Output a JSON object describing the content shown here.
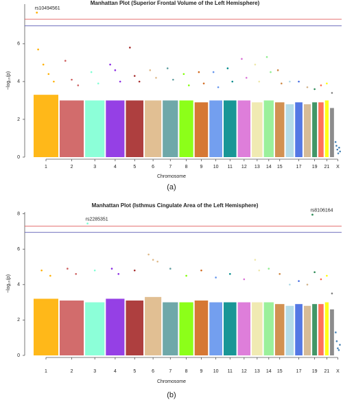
{
  "chart_data": [
    {
      "type": "manhattan",
      "title": "Manhattan Plot (Superior Frontal Volume of the Left Hemisphere)",
      "x_label": "Chromosome",
      "y_label": "−log₁₀(p)",
      "caption": "(a)",
      "categories": [
        "1",
        "2",
        "3",
        "4",
        "5",
        "6",
        "7",
        "8",
        "9",
        "10",
        "11",
        "12",
        "13",
        "14",
        "15",
        null,
        "17",
        null,
        "19",
        null,
        "21",
        null,
        "X"
      ],
      "colors": [
        "#ffb000",
        "#cd5c5c",
        "#7fffd4",
        "#8a2be2",
        "#a52a2a",
        "#deb887",
        "#5f9ea0",
        "#7fff00",
        "#d2691e",
        "#6495ed",
        "#008b8b",
        "#da70d6",
        "#eee8aa",
        "#90ee90",
        "#cd853f",
        "#add8e6",
        "#4169e1",
        "#d2b48c",
        "#2e8b57",
        "#ff6347",
        "#ffff00",
        "#808080",
        "#4682b4"
      ],
      "band_tops": [
        3.3,
        3.0,
        3.0,
        3.0,
        3.0,
        3.0,
        3.0,
        3.0,
        2.9,
        3.0,
        3.0,
        3.0,
        2.9,
        3.0,
        2.9,
        2.8,
        2.9,
        2.8,
        2.9,
        2.9,
        3.0,
        2.6,
        null
      ],
      "peaks": [
        [
          5.7,
          4.9,
          4.4,
          4.0
        ],
        [
          5.1,
          4.1,
          3.8
        ],
        [
          4.5,
          3.9
        ],
        [
          4.9,
          4.6,
          4.0
        ],
        [
          5.8,
          4.3,
          4.0
        ],
        [
          4.6,
          4.2
        ],
        [
          4.7,
          4.1
        ],
        [
          4.4,
          3.8
        ],
        [
          4.5,
          3.9
        ],
        [
          4.5,
          3.7
        ],
        [
          4.7,
          4.0
        ],
        [
          5.2,
          4.2
        ],
        [
          4.9,
          4.0
        ],
        [
          5.3,
          4.5
        ],
        [
          4.6,
          3.9
        ],
        [
          4.0
        ],
        [
          4.0
        ],
        [
          3.7
        ],
        [
          3.6
        ],
        [
          3.8
        ],
        [
          3.9
        ],
        [
          3.4
        ],
        [
          0.8,
          0.6,
          0.4,
          0.2,
          0.5,
          0.3
        ]
      ],
      "annotations": [
        {
          "label": "rs10494561",
          "chromosome": "1",
          "value": 7.65
        }
      ],
      "thresholds": [
        7.3,
        6.95
      ],
      "threshold_colors": [
        "#e05a5a",
        "#5a5ab4"
      ],
      "ylim": [
        0,
        8.1
      ],
      "yticks": [
        0,
        2,
        4,
        6
      ]
    },
    {
      "type": "manhattan",
      "title": "Manhattan Plot (Isthmus Cingulate Area of the Left Hemisphere)",
      "x_label": "Chromosome",
      "y_label": "−log₁₀(p)",
      "caption": "(b)",
      "categories": [
        "1",
        "2",
        "3",
        "4",
        "5",
        "6",
        "7",
        "8",
        "9",
        "10",
        "11",
        "12",
        "13",
        "14",
        "15",
        null,
        "17",
        null,
        "19",
        null,
        "21",
        null,
        "X"
      ],
      "colors": [
        "#ffb000",
        "#cd5c5c",
        "#7fffd4",
        "#8a2be2",
        "#a52a2a",
        "#deb887",
        "#5f9ea0",
        "#7fff00",
        "#d2691e",
        "#6495ed",
        "#008b8b",
        "#da70d6",
        "#eee8aa",
        "#90ee90",
        "#cd853f",
        "#add8e6",
        "#4169e1",
        "#d2b48c",
        "#2e8b57",
        "#ff6347",
        "#ffff00",
        "#808080",
        "#4682b4"
      ],
      "band_tops": [
        3.2,
        3.1,
        3.0,
        3.2,
        3.1,
        3.3,
        3.0,
        3.0,
        3.1,
        3.0,
        3.0,
        3.0,
        3.0,
        3.0,
        2.9,
        2.8,
        2.9,
        2.8,
        2.9,
        2.9,
        3.0,
        2.6,
        null
      ],
      "peaks": [
        [
          4.8,
          4.5
        ],
        [
          4.9,
          4.6
        ],
        [
          4.8
        ],
        [
          4.9,
          4.6
        ],
        [
          4.8
        ],
        [
          5.7,
          5.4,
          5.3
        ],
        [
          4.9
        ],
        [
          4.5
        ],
        [
          4.8
        ],
        [
          4.4
        ],
        [
          4.6
        ],
        [
          4.3
        ],
        [
          5.4,
          4.8
        ],
        [
          4.9
        ],
        [
          4.6
        ],
        [
          4.0
        ],
        [
          4.2
        ],
        [
          4.0
        ],
        [
          4.7
        ],
        [
          4.3
        ],
        [
          4.5
        ],
        [
          3.5
        ],
        [
          1.3,
          0.8,
          0.4,
          0.3,
          0.6
        ]
      ],
      "annotations": [
        {
          "label": "rs2285351",
          "chromosome": "3",
          "value": 7.45
        },
        {
          "label": "rs8106164",
          "chromosome": "19",
          "value": 7.95
        }
      ],
      "thresholds": [
        7.3,
        6.95
      ],
      "threshold_colors": [
        "#e05a5a",
        "#5a5ab4"
      ],
      "ylim": [
        0,
        8.1
      ],
      "yticks": [
        0,
        2,
        4,
        6,
        8
      ]
    }
  ]
}
